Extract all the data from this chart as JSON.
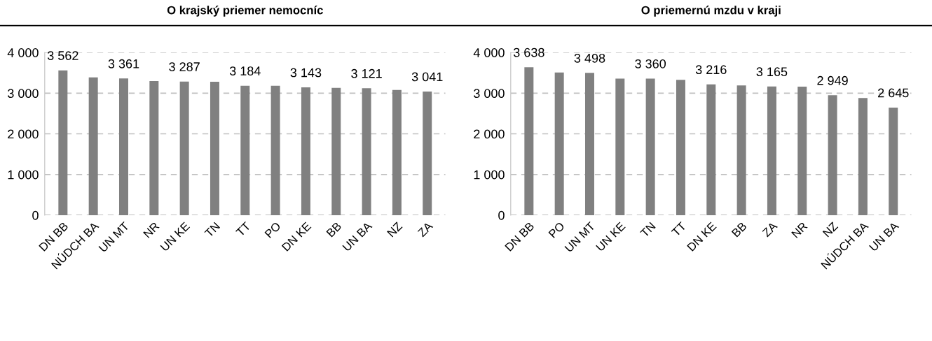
{
  "chart_data": [
    {
      "type": "bar",
      "title": "O krajský priemer nemocníc",
      "categories": [
        "DN BB",
        "NÚDCH BA",
        "UN MT",
        "NR",
        "UN KE",
        "TN",
        "TT",
        "PO",
        "DN KE",
        "BB",
        "UN BA",
        "NZ",
        "ZA"
      ],
      "values": [
        3562,
        3390,
        3361,
        3300,
        3287,
        3280,
        3184,
        3180,
        3143,
        3130,
        3121,
        3080,
        3041
      ],
      "value_labels": [
        "3 562",
        null,
        "3 361",
        null,
        "3 287",
        null,
        "3 184",
        null,
        "3 143",
        null,
        "3 121",
        null,
        "3 041"
      ],
      "color": "#808080",
      "ylim": [
        0,
        4000
      ],
      "yticks": [
        {
          "value": 0,
          "label": "0"
        },
        {
          "value": 1000,
          "label": "1 000"
        },
        {
          "value": 2000,
          "label": "2 000"
        },
        {
          "value": 3000,
          "label": "3 000"
        },
        {
          "value": 4000,
          "label": "4 000"
        }
      ],
      "grid": "y"
    },
    {
      "type": "bar",
      "title": "O priemernú mzdu v kraji",
      "categories": [
        "DN BB",
        "PO",
        "UN MT",
        "UN KE",
        "TN",
        "TT",
        "DN KE",
        "BB",
        "ZA",
        "NR",
        "NZ",
        "NÚDCH BA",
        "UN BA"
      ],
      "values": [
        3638,
        3510,
        3498,
        3360,
        3360,
        3330,
        3216,
        3190,
        3165,
        3160,
        2949,
        2880,
        2645
      ],
      "value_labels": [
        "3 638",
        null,
        "3 498",
        null,
        "3 360",
        null,
        "3 216",
        null,
        "3 165",
        null,
        "2 949",
        null,
        "2 645"
      ],
      "color": "#808080",
      "ylim": [
        0,
        4000
      ],
      "yticks": [
        {
          "value": 0,
          "label": "0"
        },
        {
          "value": 1000,
          "label": "1 000"
        },
        {
          "value": 2000,
          "label": "2 000"
        },
        {
          "value": 3000,
          "label": "3 000"
        },
        {
          "value": 4000,
          "label": "4 000"
        }
      ],
      "grid": "y"
    }
  ]
}
